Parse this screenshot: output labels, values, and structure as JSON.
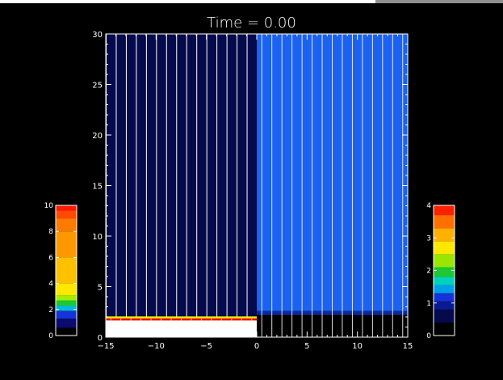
{
  "chart_data": {
    "type": "heatmap",
    "title": "Time = 0.00",
    "x": {
      "min": -15,
      "max": 15,
      "ticks": [
        -15,
        -10,
        -5,
        0,
        5,
        10,
        15
      ]
    },
    "y": {
      "min": 0,
      "max": 30,
      "ticks": [
        0,
        5,
        10,
        15,
        20,
        25,
        30
      ]
    },
    "left_region": {
      "x_range": [
        -15,
        0
      ],
      "background": "#050a4d",
      "white_block_y": [
        0,
        1.8
      ],
      "layers": [
        {
          "y_range": [
            1.65,
            1.85
          ],
          "color": "#e60000"
        },
        {
          "y_range": [
            1.85,
            1.95
          ],
          "color": "#ffaa00"
        },
        {
          "y_range": [
            1.95,
            2.05
          ],
          "color": "#f0ff00"
        }
      ],
      "vertical_lines_x": [
        -15,
        -14,
        -13,
        -12,
        -11,
        -10,
        -9,
        -8,
        -7,
        -6,
        -5,
        -4,
        -3,
        -2,
        -1
      ]
    },
    "right_region": {
      "x_range": [
        0,
        15
      ],
      "background": "#1b62f0",
      "low_band": [
        {
          "y_range": [
            0,
            2.2
          ],
          "color": "#000000"
        },
        {
          "y_range": [
            2.2,
            2.6
          ],
          "color": "#0b2a9a"
        }
      ],
      "vertical_lines_x": [
        0.5,
        1.5,
        2.5,
        3.5,
        4.5,
        5.5,
        6.5,
        7.5,
        8.5,
        9.5,
        10.5,
        11.5,
        12.5,
        13.5,
        14.5
      ]
    },
    "colorbars": [
      {
        "name": "left",
        "min": 0,
        "max": 10,
        "tick_labels": [
          "0",
          "2",
          "4",
          "6",
          "8",
          "10"
        ],
        "bands": [
          "#000000",
          "#0a0a70",
          "#1533d6",
          "#00b8d8",
          "#1ec832",
          "#a4ec00",
          "#ffe800",
          "#ffc000",
          "#ff9800",
          "#ff7a00",
          "#ff4a00",
          "#ff1a00"
        ],
        "band_stops": [
          0,
          0.6,
          1.3,
          1.9,
          2.3,
          2.7,
          3.1,
          4.0,
          6.0,
          8.0,
          9.0,
          9.6,
          10
        ]
      },
      {
        "name": "right",
        "min": 0,
        "max": 4,
        "tick_labels": [
          "0",
          "1",
          "2",
          "3",
          "4"
        ],
        "bands": [
          "#000000",
          "#050a4d",
          "#0a1a90",
          "#1533d6",
          "#00a0e8",
          "#00d0c0",
          "#1ec832",
          "#9ae600",
          "#ffe800",
          "#ffb000",
          "#ff7000",
          "#ff2000"
        ],
        "band_stops": [
          0,
          0.4,
          0.8,
          1.05,
          1.3,
          1.55,
          1.8,
          2.1,
          2.5,
          2.9,
          3.3,
          3.7,
          4
        ]
      }
    ]
  }
}
